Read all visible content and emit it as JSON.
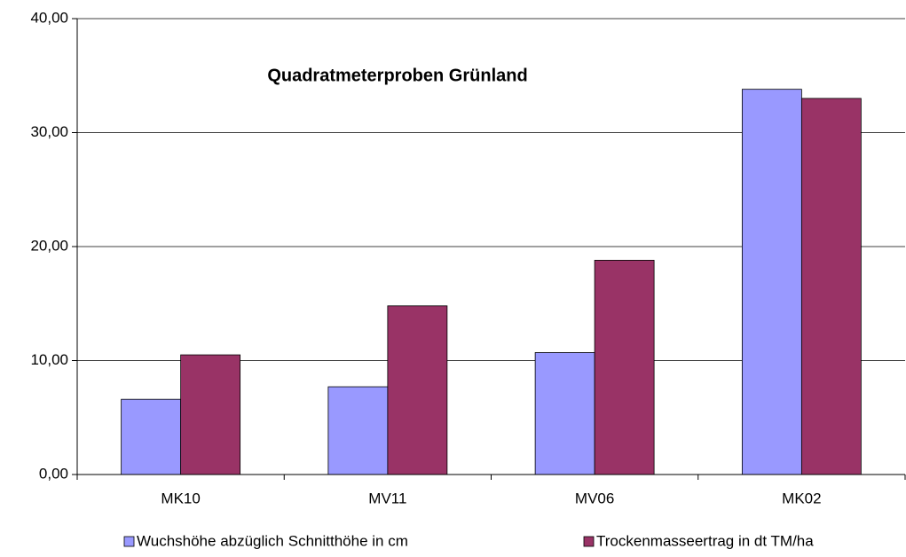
{
  "chart_data": {
    "type": "bar",
    "title": "Quadratmeterproben Grünland",
    "categories": [
      "MK10",
      "MV11",
      "MV06",
      "MK02"
    ],
    "series": [
      {
        "name": "Wuchshöhe abzüglich Schnitthöhe in cm",
        "color": "#9999ff",
        "values": [
          6.6,
          7.7,
          10.7,
          33.8
        ]
      },
      {
        "name": "Trockenmasseertrag in dt TM/ha",
        "color": "#993366",
        "values": [
          10.5,
          14.8,
          18.8,
          33.0
        ]
      }
    ],
    "ylim": [
      0,
      40
    ],
    "yticks": [
      {
        "value": 0,
        "label": "0,00"
      },
      {
        "value": 10,
        "label": "10,00"
      },
      {
        "value": 20,
        "label": "20,00"
      },
      {
        "value": 30,
        "label": "30,00"
      },
      {
        "value": 40,
        "label": "40,00"
      }
    ],
    "grid": true,
    "legend": "bottom"
  }
}
